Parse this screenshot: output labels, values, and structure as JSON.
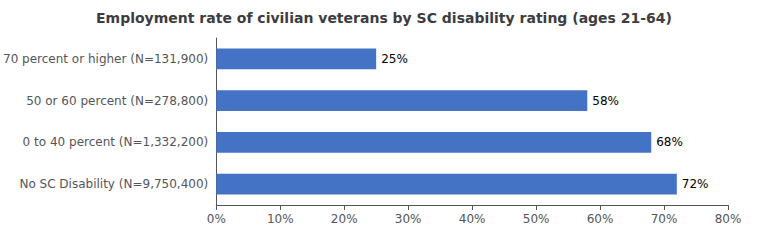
{
  "chart_data": {
    "type": "bar",
    "orientation": "horizontal",
    "title": "Employment rate of civilian veterans by SC disability rating (ages 21-64)",
    "categories": [
      "No SC Disability (N=9,750,400)",
      "0 to 40 percent (N=1,332,200)",
      "50 or 60 percent (N=278,800)",
      "70 percent or higher (N=131,900)"
    ],
    "values": [
      72,
      68,
      58,
      25
    ],
    "value_labels": [
      "72%",
      "68%",
      "58%",
      "25%"
    ],
    "data_labels": true,
    "color": "#4472C4",
    "xlim": [
      0,
      80
    ],
    "xticks": [
      {
        "value": 0,
        "label": "0%"
      },
      {
        "value": 10,
        "label": "10%"
      },
      {
        "value": 20,
        "label": "20%"
      },
      {
        "value": 30,
        "label": "30%"
      },
      {
        "value": 40,
        "label": "40%"
      },
      {
        "value": 50,
        "label": "50%"
      },
      {
        "value": 60,
        "label": "60%"
      },
      {
        "value": 70,
        "label": "70%"
      },
      {
        "value": 80,
        "label": "80%"
      }
    ],
    "grid": false
  }
}
